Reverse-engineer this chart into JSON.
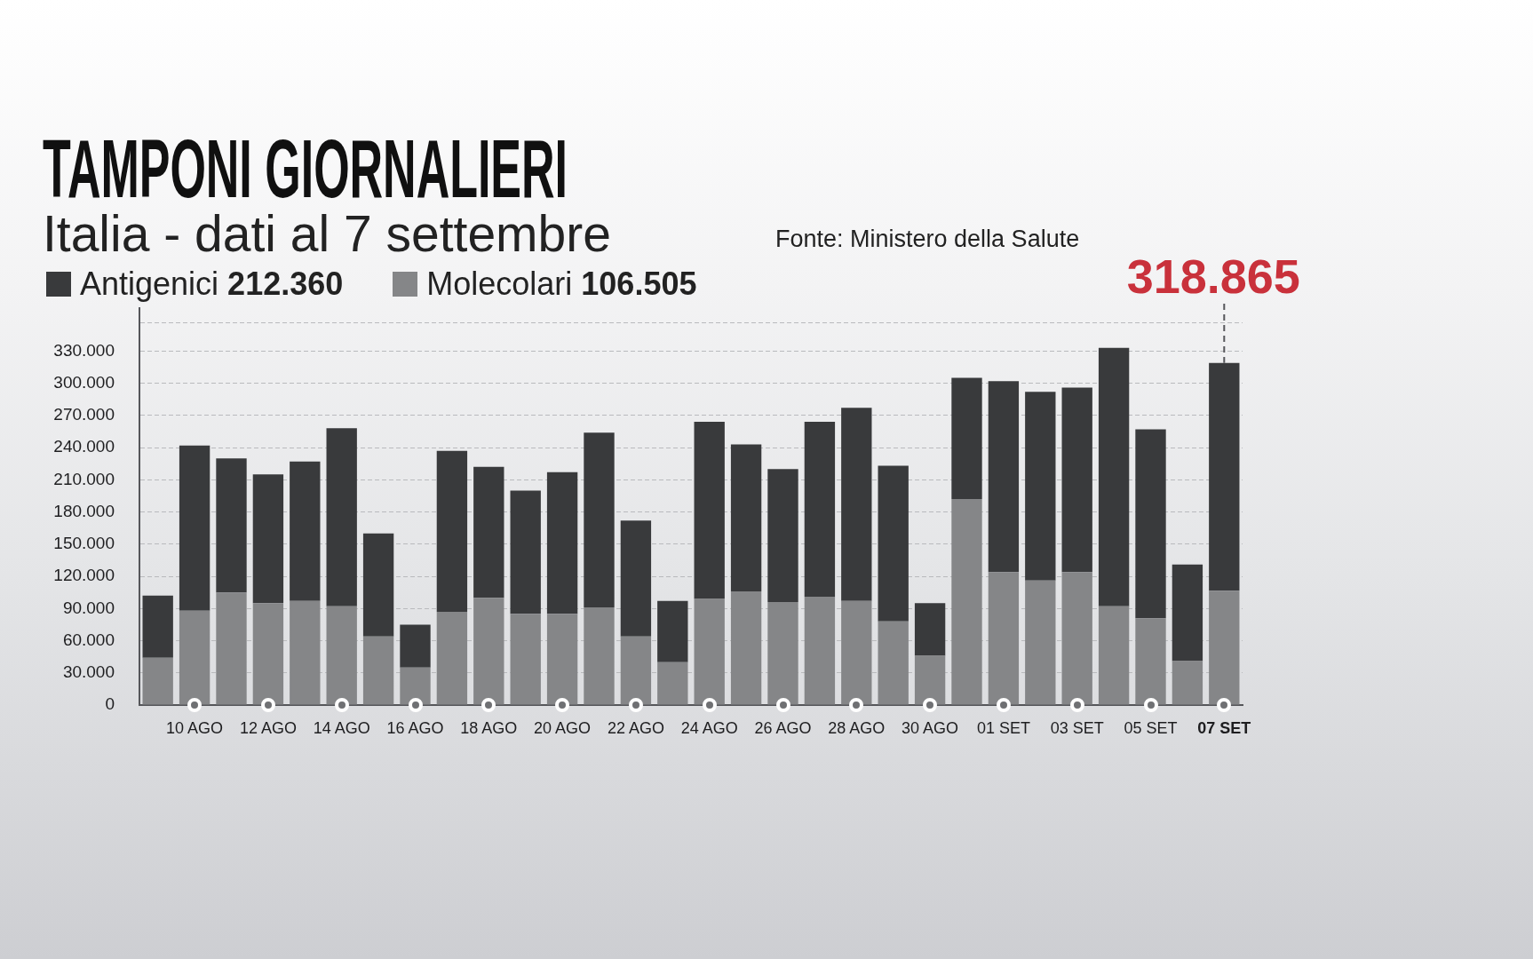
{
  "chart_data": {
    "type": "bar",
    "title": "TAMPONI GIORNALIERI",
    "subtitle": "Italia - dati al 7 settembre",
    "annotations": [
      "Fonte: Ministero della Salute",
      {
        "text": "318.865",
        "x": "07 SET",
        "y": 318865
      }
    ],
    "categories": [
      null,
      "10 AGO",
      null,
      "12 AGO",
      null,
      "14 AGO",
      null,
      "16 AGO",
      null,
      "18 AGO",
      null,
      "20 AGO",
      null,
      "22 AGO",
      null,
      "24 AGO",
      null,
      "26 AGO",
      null,
      "28 AGO",
      null,
      "30 AGO",
      null,
      "01 SET",
      null,
      "03 SET",
      null,
      "05 SET",
      null,
      "07 SET"
    ],
    "series": [
      {
        "name": "Molecolari 106.505",
        "color": "#858688",
        "values": [
          44000,
          88000,
          105000,
          95000,
          97000,
          92000,
          64000,
          35000,
          87000,
          100000,
          85000,
          85000,
          91000,
          64000,
          40000,
          99000,
          106000,
          96000,
          101000,
          97000,
          78000,
          46000,
          192000,
          124000,
          116000,
          124000,
          92000,
          81000,
          41000,
          106505
        ]
      },
      {
        "name": "Antigenici 212.360",
        "color": "#393a3c",
        "values": [
          58000,
          154000,
          125000,
          120000,
          130000,
          166000,
          96000,
          40000,
          150000,
          122000,
          115000,
          132000,
          163000,
          108000,
          57000,
          165000,
          137000,
          124000,
          163000,
          180000,
          145000,
          49000,
          113000,
          178000,
          176000,
          172000,
          241000,
          176000,
          90000,
          212360
        ]
      }
    ],
    "stacked": true,
    "ylim": [
      0,
      370000
    ],
    "yticks": [
      0,
      {
        "value": 30000,
        "label": "30.000"
      },
      {
        "value": 60000,
        "label": "60.000"
      },
      {
        "value": 90000,
        "label": "90.000"
      },
      {
        "value": 120000,
        "label": "120.000"
      },
      {
        "value": 150000,
        "label": "150.000"
      },
      {
        "value": 180000,
        "label": "180.000"
      },
      {
        "value": 210000,
        "label": "210.000"
      },
      {
        "value": 240000,
        "label": "240.000"
      },
      {
        "value": 270000,
        "label": "270.000"
      },
      {
        "value": 300000,
        "label": "300.000"
      },
      {
        "value": 330000,
        "label": "330.000"
      },
      {
        "value": 356000,
        "label": null
      }
    ],
    "grid": "y",
    "legend": "top left"
  }
}
